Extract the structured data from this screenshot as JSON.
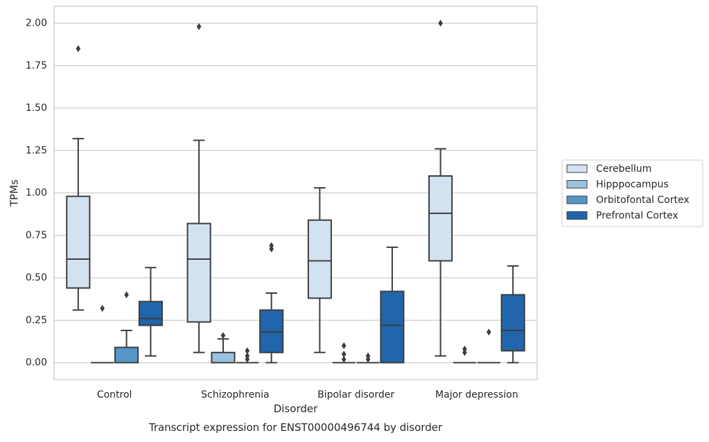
{
  "chart_data": {
    "type": "box",
    "title": "",
    "caption": "Transcript expression for ENST00000496744 by disorder",
    "xlabel": "Disorder",
    "ylabel": "TPMs",
    "ylim": [
      -0.1,
      2.1
    ],
    "yticks": [
      0.0,
      0.25,
      0.5,
      0.75,
      1.0,
      1.25,
      1.5,
      1.75,
      2.0
    ],
    "ytick_labels": [
      "0.00",
      "0.25",
      "0.50",
      "0.75",
      "1.00",
      "1.25",
      "1.50",
      "1.75",
      "2.00"
    ],
    "grid": "y",
    "legend_position": "right",
    "categories": [
      "Control",
      "Schizophrenia",
      "Bipolar disorder",
      "Major depression"
    ],
    "series": [
      {
        "name": "Cerebellum",
        "color": "#d3e2f1",
        "boxes": [
          {
            "whislo": 0.31,
            "q1": 0.44,
            "med": 0.61,
            "q3": 0.98,
            "whishi": 1.32,
            "fliers": [
              1.85
            ]
          },
          {
            "whislo": 0.06,
            "q1": 0.24,
            "med": 0.61,
            "q3": 0.82,
            "whishi": 1.31,
            "fliers": [
              1.98
            ]
          },
          {
            "whislo": 0.06,
            "q1": 0.38,
            "med": 0.6,
            "q3": 0.84,
            "whishi": 1.03,
            "fliers": []
          },
          {
            "whislo": 0.04,
            "q1": 0.6,
            "med": 0.88,
            "q3": 1.1,
            "whishi": 1.26,
            "fliers": [
              2.0
            ]
          }
        ]
      },
      {
        "name": "Hipppocampus",
        "color": "#9ac2de",
        "boxes": [
          {
            "whislo": 0.0,
            "q1": 0.0,
            "med": 0.0,
            "q3": 0.0,
            "whishi": 0.0,
            "fliers": [
              0.32
            ]
          },
          {
            "whislo": 0.0,
            "q1": 0.0,
            "med": 0.0,
            "q3": 0.06,
            "whishi": 0.14,
            "fliers": [
              0.16
            ]
          },
          {
            "whislo": 0.0,
            "q1": 0.0,
            "med": 0.0,
            "q3": 0.0,
            "whishi": 0.0,
            "fliers": [
              0.02,
              0.05,
              0.1
            ]
          },
          {
            "whislo": 0.0,
            "q1": 0.0,
            "med": 0.0,
            "q3": 0.0,
            "whishi": 0.0,
            "fliers": [
              0.06,
              0.08
            ]
          }
        ]
      },
      {
        "name": "Orbitofontal Cortex",
        "color": "#5496c5",
        "boxes": [
          {
            "whislo": 0.0,
            "q1": 0.0,
            "med": 0.0,
            "q3": 0.09,
            "whishi": 0.19,
            "fliers": [
              0.4
            ]
          },
          {
            "whislo": 0.0,
            "q1": 0.0,
            "med": 0.0,
            "q3": 0.0,
            "whishi": 0.0,
            "fliers": [
              0.02,
              0.04,
              0.07
            ]
          },
          {
            "whislo": 0.0,
            "q1": 0.0,
            "med": 0.0,
            "q3": 0.0,
            "whishi": 0.0,
            "fliers": [
              0.02,
              0.04
            ]
          },
          {
            "whislo": 0.0,
            "q1": 0.0,
            "med": 0.0,
            "q3": 0.0,
            "whishi": 0.0,
            "fliers": [
              0.18
            ]
          }
        ]
      },
      {
        "name": "Prefrontal Cortex",
        "color": "#2166ac",
        "boxes": [
          {
            "whislo": 0.04,
            "q1": 0.22,
            "med": 0.26,
            "q3": 0.36,
            "whishi": 0.56,
            "fliers": []
          },
          {
            "whislo": 0.0,
            "q1": 0.06,
            "med": 0.18,
            "q3": 0.31,
            "whishi": 0.41,
            "fliers": [
              0.67,
              0.69
            ]
          },
          {
            "whislo": 0.0,
            "q1": 0.0,
            "med": 0.22,
            "q3": 0.42,
            "whishi": 0.68,
            "fliers": []
          },
          {
            "whislo": 0.0,
            "q1": 0.07,
            "med": 0.19,
            "q3": 0.4,
            "whishi": 0.57,
            "fliers": []
          }
        ]
      }
    ]
  }
}
